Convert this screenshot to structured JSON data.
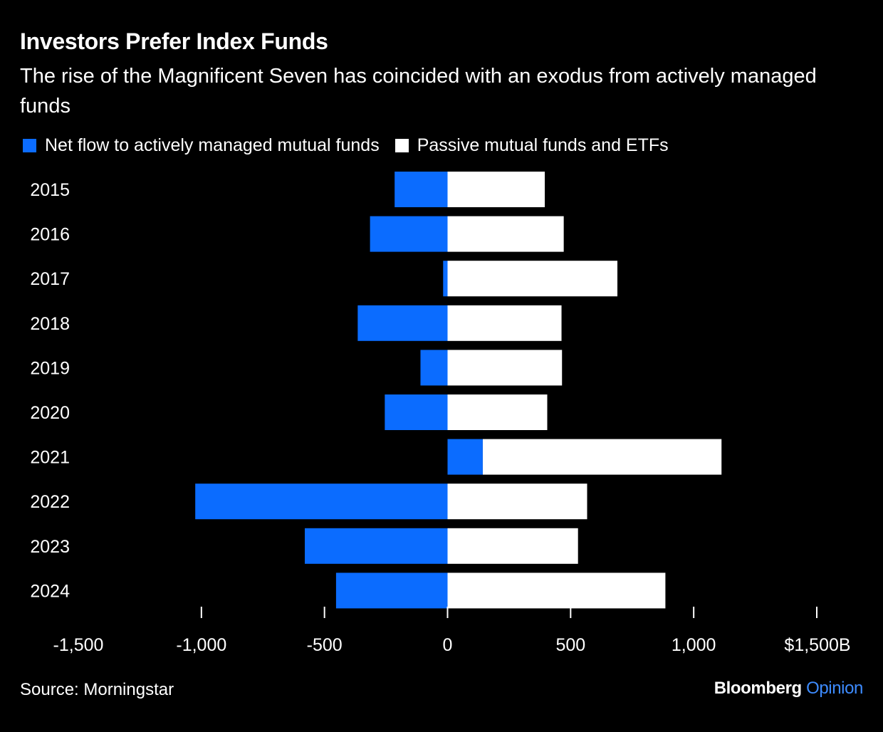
{
  "header": {
    "title": "Investors Prefer Index Funds",
    "subtitle": "The rise of the Magnificent Seven has coincided with an exodus from actively managed funds"
  },
  "colors": {
    "background": "#000000",
    "active": "#0b6cff",
    "passive": "#ffffff",
    "text": "#ffffff",
    "brand_accent": "#3d8bff"
  },
  "chart_data": {
    "type": "bar",
    "orientation": "horizontal",
    "stacked": "diverging",
    "categories": [
      "2015",
      "2016",
      "2017",
      "2018",
      "2019",
      "2020",
      "2021",
      "2022",
      "2023",
      "2024"
    ],
    "series": [
      {
        "name": "Net flow to actively managed mutual funds",
        "color": "#0b6cff",
        "values": [
          -215,
          -315,
          -18,
          -365,
          -110,
          -255,
          143,
          -1025,
          -580,
          -453
        ]
      },
      {
        "name": "Passive mutual funds and ETFs",
        "color": "#ffffff",
        "values": [
          395,
          472,
          690,
          463,
          465,
          405,
          970,
          567,
          530,
          885
        ]
      }
    ],
    "xlim": [
      -1500,
      1500
    ],
    "x_ticks": [
      -1500,
      -1000,
      -500,
      0,
      500,
      1000,
      1500
    ],
    "x_tick_labels": [
      "-1,500",
      "-1,000",
      "-500",
      "0",
      "500",
      "1,000",
      "$1,500B"
    ],
    "legend_position": "top-left",
    "grid": false
  },
  "footer": {
    "source": "Source: Morningstar",
    "brand_main": "Bloomberg",
    "brand_accent": "Opinion"
  }
}
